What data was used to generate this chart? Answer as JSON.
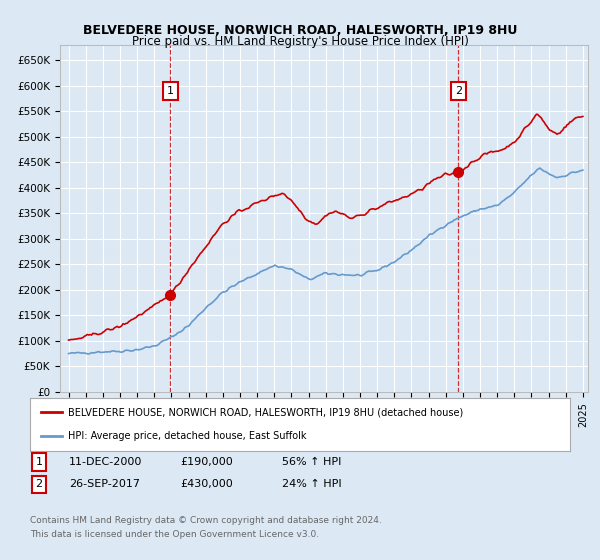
{
  "title": "BELVEDERE HOUSE, NORWICH ROAD, HALESWORTH, IP19 8HU",
  "subtitle": "Price paid vs. HM Land Registry's House Price Index (HPI)",
  "ylim": [
    0,
    680000
  ],
  "yticks": [
    0,
    50000,
    100000,
    150000,
    200000,
    250000,
    300000,
    350000,
    400000,
    450000,
    500000,
    550000,
    600000,
    650000
  ],
  "ytick_labels": [
    "£0",
    "£50K",
    "£100K",
    "£150K",
    "£200K",
    "£250K",
    "£300K",
    "£350K",
    "£400K",
    "£450K",
    "£500K",
    "£550K",
    "£600K",
    "£650K"
  ],
  "background_color": "#dce9f5",
  "plot_bg_color": "#dce9f5",
  "grid_color": "#ffffff",
  "sale1_date_num": 2000.94,
  "sale1_price": 190000,
  "sale1_date_str": "11-DEC-2000",
  "sale1_pct": "56% ↑ HPI",
  "sale2_date_num": 2017.74,
  "sale2_price": 430000,
  "sale2_date_str": "26-SEP-2017",
  "sale2_pct": "24% ↑ HPI",
  "red_line_color": "#cc0000",
  "blue_line_color": "#6699cc",
  "legend_house": "BELVEDERE HOUSE, NORWICH ROAD, HALESWORTH, IP19 8HU (detached house)",
  "legend_hpi": "HPI: Average price, detached house, East Suffolk",
  "footer_line1": "Contains HM Land Registry data © Crown copyright and database right 2024.",
  "footer_line2": "This data is licensed under the Open Government Licence v3.0.",
  "xmin": 1995,
  "xmax": 2025
}
